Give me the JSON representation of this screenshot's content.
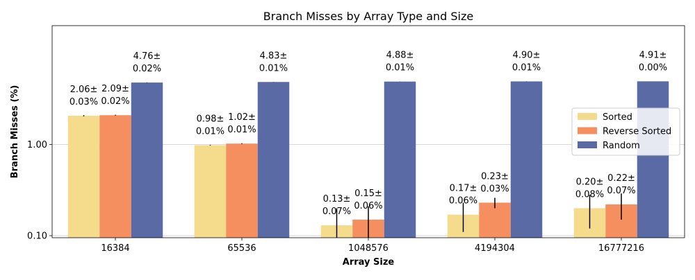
{
  "chart_data": {
    "type": "bar",
    "title": "Branch Misses by Array Type and Size",
    "xlabel": "Array Size",
    "ylabel": "Branch Misses (%)",
    "yscale": "log",
    "ylim": [
      0.095,
      20
    ],
    "yticks": [
      0.1,
      1.0
    ],
    "ytick_labels": [
      "0.10",
      "1.00"
    ],
    "grid": "y",
    "legend_position": "right",
    "categories": [
      "16384",
      "65536",
      "1048576",
      "4194304",
      "16777216"
    ],
    "series": [
      {
        "name": "Sorted",
        "color": "#f4dc8c",
        "values": [
          2.06,
          0.98,
          0.13,
          0.17,
          0.2
        ],
        "errors": [
          0.03,
          0.01,
          0.07,
          0.06,
          0.08
        ],
        "labels": [
          [
            "2.06±",
            "0.03%"
          ],
          [
            "0.98±",
            "0.01%"
          ],
          [
            "0.13±",
            "0.07%"
          ],
          [
            "0.17±",
            "0.06%"
          ],
          [
            "0.20±",
            "0.08%"
          ]
        ]
      },
      {
        "name": "Reverse Sorted",
        "color": "#f68f5f",
        "values": [
          2.09,
          1.02,
          0.15,
          0.23,
          0.22
        ],
        "errors": [
          0.02,
          0.01,
          0.06,
          0.03,
          0.07
        ],
        "labels": [
          [
            "2.09±",
            "0.02%"
          ],
          [
            "1.02±",
            "0.01%"
          ],
          [
            "0.15±",
            "0.06%"
          ],
          [
            "0.23±",
            "0.03%"
          ],
          [
            "0.22±",
            "0.07%"
          ]
        ]
      },
      {
        "name": "Random",
        "color": "#5a6aa5",
        "values": [
          4.76,
          4.83,
          4.88,
          4.9,
          4.91
        ],
        "errors": [
          0.02,
          0.01,
          0.01,
          0.01,
          0.0
        ],
        "labels": [
          [
            "4.76±",
            "0.02%"
          ],
          [
            "4.83±",
            "0.01%"
          ],
          [
            "4.88±",
            "0.01%"
          ],
          [
            "4.90±",
            "0.01%"
          ],
          [
            "4.91±",
            "0.00%"
          ]
        ]
      }
    ]
  }
}
